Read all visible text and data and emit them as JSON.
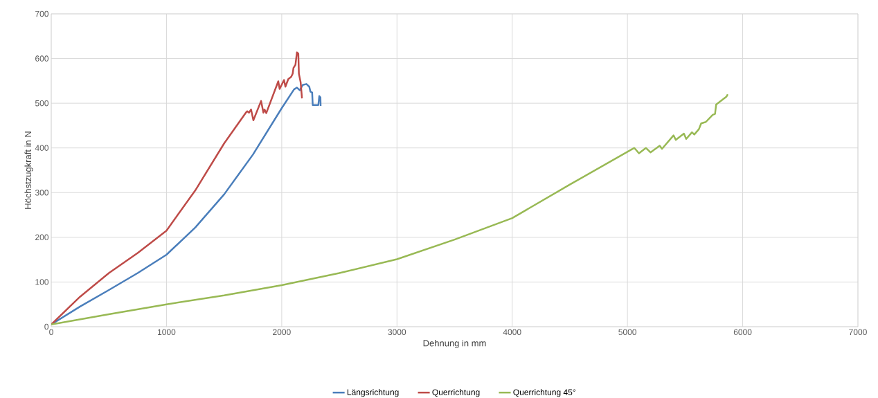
{
  "chart_data": {
    "type": "line",
    "xlabel": "Dehnung in mm",
    "ylabel": "Höchstzugkraft in N",
    "xlim": [
      0,
      7000
    ],
    "ylim": [
      0,
      700
    ],
    "xticks": [
      0,
      1000,
      2000,
      3000,
      4000,
      5000,
      6000,
      7000
    ],
    "yticks": [
      0,
      100,
      200,
      300,
      400,
      500,
      600,
      700
    ],
    "grid": true,
    "legend": "bottom",
    "marker": "none",
    "line_style": "solid",
    "series": [
      {
        "name": "Längsrichtung",
        "color": "#4a7ebb",
        "x": [
          0,
          250,
          500,
          750,
          1000,
          1250,
          1500,
          1750,
          2000,
          2107,
          2132,
          2157,
          2182,
          2214,
          2239,
          2249,
          2264,
          2269,
          2318,
          2326,
          2336,
          2338
        ],
        "values": [
          5,
          45,
          82,
          120,
          161,
          222,
          296,
          385,
          489,
          531,
          535,
          529,
          541,
          543,
          537,
          526,
          524,
          496,
          496,
          516,
          513,
          494
        ]
      },
      {
        "name": "Querrichtung",
        "color": "#be4b48",
        "x": [
          0,
          250,
          500,
          750,
          1000,
          1250,
          1500,
          1689,
          1701,
          1716,
          1734,
          1754,
          1821,
          1841,
          1851,
          1866,
          1970,
          1982,
          2020,
          2032,
          2057,
          2082,
          2095,
          2102,
          2119,
          2132,
          2144,
          2149,
          2164,
          2176
        ],
        "values": [
          5,
          67,
          120,
          165,
          215,
          305,
          410,
          479,
          482,
          479,
          486,
          462,
          505,
          479,
          486,
          478,
          549,
          532,
          552,
          537,
          554,
          559,
          566,
          579,
          586,
          614,
          611,
          566,
          547,
          511
        ]
      },
      {
        "name": "Querrichtung 45°",
        "color": "#98b954",
        "x": [
          0,
          500,
          1000,
          1500,
          2000,
          2500,
          3000,
          3500,
          4000,
          4500,
          5060,
          5100,
          5160,
          5200,
          5280,
          5300,
          5400,
          5420,
          5490,
          5510,
          5560,
          5580,
          5620,
          5640,
          5680,
          5740,
          5760,
          5770,
          5860,
          5870
        ],
        "values": [
          5,
          28,
          50,
          70,
          93,
          120,
          151,
          195,
          243,
          318,
          400,
          388,
          400,
          390,
          405,
          398,
          428,
          418,
          432,
          420,
          435,
          430,
          442,
          455,
          458,
          474,
          476,
          497,
          515,
          520
        ]
      }
    ]
  }
}
